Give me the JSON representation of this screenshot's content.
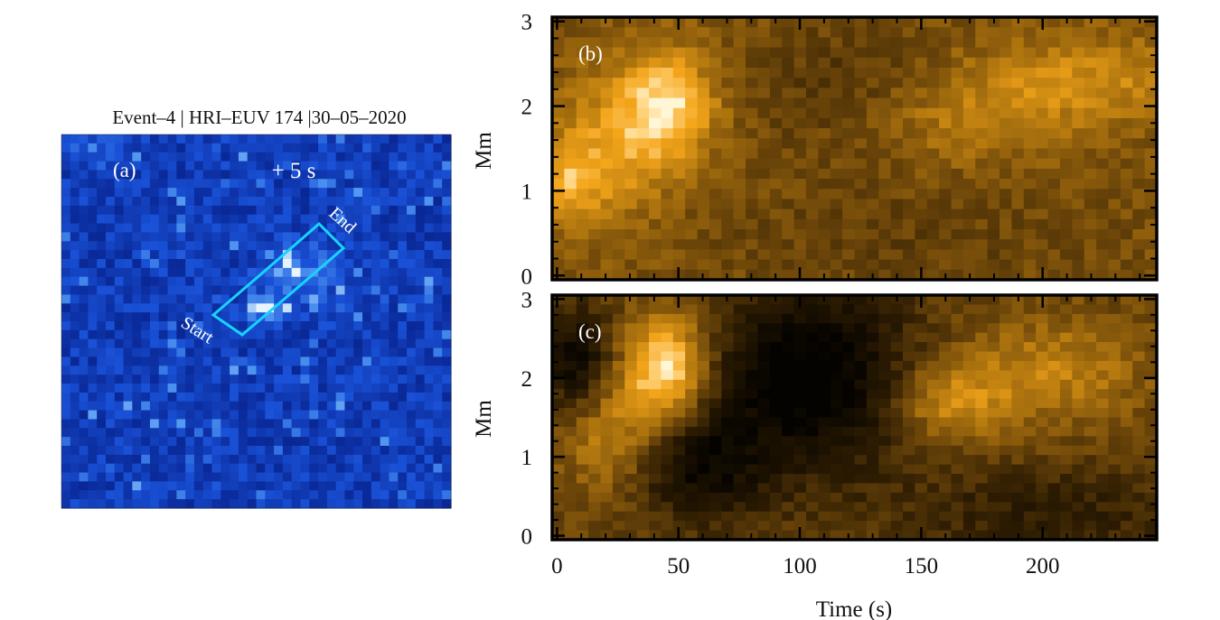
{
  "colors": {
    "euv_low": "#071a6e",
    "euv_high": "#e8f4ff",
    "slit_outline": "#18d3ff",
    "xt_low": "#050300",
    "xt_high": "#fff6d6",
    "axis": "#000000"
  },
  "panel_a": {
    "title": "Event–4 | HRI–EUV 174 |30–05–2020",
    "label": "(a)",
    "time_offset": "+ 5 s",
    "slit_start_label": "Start",
    "slit_end_label": "End"
  },
  "chart_data": [
    {
      "id": "b",
      "type": "heatmap",
      "label": "(b)",
      "title": "",
      "xlabel": "",
      "ylabel": "Mm",
      "xlim": [
        -2,
        247
      ],
      "ylim": [
        -0.05,
        3.05
      ],
      "xticks": [
        0,
        50,
        100,
        150,
        200
      ],
      "yticks": [
        0,
        1,
        2,
        3
      ],
      "ytick_labels": [
        "0",
        "1",
        "2",
        "3"
      ],
      "x_tick_labels_shown": false,
      "colormap": "sdo_aia_171_gold",
      "features": [
        {
          "t": 45,
          "y": 2.0,
          "intensity": "brightest"
        },
        {
          "t": 10,
          "y": 1.2,
          "intensity": "bright"
        },
        {
          "t": 215,
          "y": 2.3,
          "intensity": "bright"
        }
      ]
    },
    {
      "id": "c",
      "type": "heatmap",
      "label": "(c)",
      "title": "",
      "xlabel": "Time (s)",
      "ylabel": "Mm",
      "xlim": [
        -2,
        247
      ],
      "ylim": [
        -0.05,
        3.05
      ],
      "xticks": [
        0,
        50,
        100,
        150,
        200
      ],
      "xtick_labels": [
        "0",
        "50",
        "100",
        "150",
        "200"
      ],
      "yticks": [
        0,
        1,
        2,
        3
      ],
      "ytick_labels": [
        "0",
        "1",
        "2",
        "3"
      ],
      "colormap": "sdo_aia_171_gold",
      "features": [
        {
          "t": 45,
          "y": 2.0,
          "intensity": "brightest"
        },
        {
          "t": 110,
          "y": 2.0,
          "intensity": "dark"
        },
        {
          "t": 160,
          "y": 1.6,
          "intensity": "bright"
        }
      ]
    }
  ]
}
